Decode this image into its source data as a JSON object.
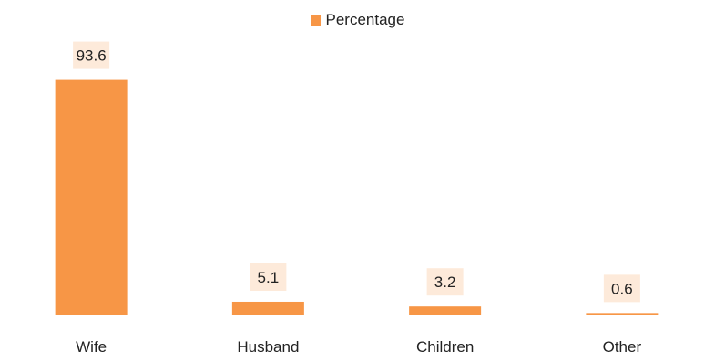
{
  "chart_data": {
    "type": "bar",
    "categories": [
      "Wife",
      "Husband",
      "Children",
      "Other"
    ],
    "series": [
      {
        "name": "Percentage",
        "values": [
          93.6,
          5.1,
          3.2,
          0.6
        ]
      }
    ],
    "data_labels": [
      "93.6",
      "5.1",
      "3.2",
      "0.6"
    ],
    "title": "",
    "xlabel": "",
    "ylabel": "",
    "ylim": [
      0,
      100
    ],
    "grid": false,
    "legend_position": "top-center",
    "colors": {
      "bar": "#F79646",
      "label_bg": "#FDEADA",
      "axis": "#7F7F7F",
      "text": "#222222"
    }
  }
}
